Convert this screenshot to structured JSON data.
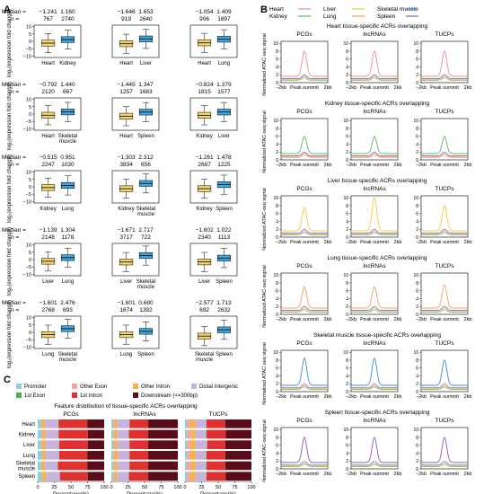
{
  "panel_labels": {
    "a": "A",
    "b": "B",
    "c": "C"
  },
  "panelA": {
    "median_label": "Median =",
    "n_label": "n =",
    "ylabel": "log₂(expression fold change)",
    "yticks": [
      "10",
      "5",
      "0",
      "−5",
      "−10"
    ],
    "colors": {
      "first": "#f6d66b",
      "second": "#3ea7e0"
    },
    "rows": [
      [
        {
          "cats": [
            "Heart",
            "Kidney"
          ],
          "medians": [
            "−1.241",
            "1.160"
          ],
          "n": [
            "767",
            "2740"
          ]
        },
        {
          "cats": [
            "Heart",
            "Liver"
          ],
          "medians": [
            "−1.646",
            "1.653"
          ],
          "n": [
            "919",
            "2640"
          ]
        },
        {
          "cats": [
            "Heart",
            "Lung"
          ],
          "medians": [
            "−1.054",
            "1.409"
          ],
          "n": [
            "906",
            "1697"
          ]
        }
      ],
      [
        {
          "cats": [
            "Heart",
            "Skeletal muscle"
          ],
          "medians": [
            "−0.792",
            "1.440"
          ],
          "n": [
            "2120",
            "667"
          ]
        },
        {
          "cats": [
            "Heart",
            "Spleen"
          ],
          "medians": [
            "−1.445",
            "1.347"
          ],
          "n": [
            "1257",
            "1683"
          ]
        },
        {
          "cats": [
            "Kidney",
            "Liver"
          ],
          "medians": [
            "−0.824",
            "1.379"
          ],
          "n": [
            "1815",
            "1577"
          ]
        }
      ],
      [
        {
          "cats": [
            "Kidney",
            "Lung"
          ],
          "medians": [
            "−0.515",
            "0.951"
          ],
          "n": [
            "2247",
            "1030"
          ]
        },
        {
          "cats": [
            "Kidney",
            "Skeletal muscle"
          ],
          "medians": [
            "−1.303",
            "2.312"
          ],
          "n": [
            "3834",
            "656"
          ]
        },
        {
          "cats": [
            "Kidney",
            "Spleen"
          ],
          "medians": [
            "−1.261",
            "1.478"
          ],
          "n": [
            "2687",
            "1225"
          ]
        }
      ],
      [
        {
          "cats": [
            "Liver",
            "Lung"
          ],
          "medians": [
            "−1.139",
            "1.304"
          ],
          "n": [
            "2148",
            "1178"
          ]
        },
        {
          "cats": [
            "Liver",
            "Skeletal muscle"
          ],
          "medians": [
            "−1.671",
            "2.717"
          ],
          "n": [
            "3717",
            "722"
          ]
        },
        {
          "cats": [
            "Liver",
            "Spleen"
          ],
          "medians": [
            "−1.602",
            "1.022"
          ],
          "n": [
            "2340",
            "1113"
          ]
        }
      ],
      [
        {
          "cats": [
            "Lung",
            "Skeletal muscle"
          ],
          "medians": [
            "−1.601",
            "2.476"
          ],
          "n": [
            "2768",
            "693"
          ]
        },
        {
          "cats": [
            "Lung",
            "Spleen"
          ],
          "medians": [
            "−1.601",
            "0.680"
          ],
          "n": [
            "1674",
            "1392"
          ]
        },
        {
          "cats": [
            "Skeletal muscle",
            "Spleen"
          ],
          "medians": [
            "−2.577",
            "1.713"
          ],
          "n": [
            "692",
            "2632"
          ]
        }
      ]
    ]
  },
  "panelB": {
    "legend": [
      {
        "name": "Heart",
        "color": "#f08c8c"
      },
      {
        "name": "Liver",
        "color": "#f2cc3a"
      },
      {
        "name": "Skeletal muscle",
        "color": "#3a8fd6"
      },
      {
        "name": "Kidney",
        "color": "#5cb85c"
      },
      {
        "name": "Lung",
        "color": "#f0a060"
      },
      {
        "name": "Spleen",
        "color": "#8e56c2"
      }
    ],
    "ylabel": "Normalized ATAC-seq signal",
    "xticks": [
      "−2kb",
      "Peak summit",
      "2kb"
    ],
    "yticks": [
      "0",
      "2",
      "4",
      "6",
      "8",
      "10"
    ],
    "cols": [
      "PCGs",
      "lncRNAs",
      "TUCPs"
    ],
    "groups": [
      {
        "title": "Heart tissue-specific ACRs overlapping",
        "highlight": 0,
        "peaks": [
          8,
          8,
          8
        ]
      },
      {
        "title": "Kidney tissue-specific ACRs overlapping",
        "highlight": 3,
        "peaks": [
          6,
          6,
          6
        ]
      },
      {
        "title": "Liver tissue-specific ACRs overlapping",
        "highlight": 1,
        "peaks": [
          7.5,
          10,
          8
        ]
      },
      {
        "title": "Lung tissue-specific ACRs overlapping",
        "highlight": 4,
        "peaks": [
          7,
          7,
          7.5
        ]
      },
      {
        "title": "Skeletal muscle tissue-specific ACRs overlapping",
        "highlight": 2,
        "peaks": [
          8.5,
          8.5,
          8
        ]
      },
      {
        "title": "Spleen tissue-specific ACRs overlapping",
        "highlight": 5,
        "peaks": [
          8,
          8,
          8
        ]
      }
    ]
  },
  "panelC": {
    "legend": [
      {
        "name": "Promoter",
        "color": "#8ecfd8"
      },
      {
        "name": "Other Exon",
        "color": "#f5a3a3"
      },
      {
        "name": "Other Intron",
        "color": "#f7b04a"
      },
      {
        "name": "Distal Intergenic",
        "color": "#c7b3de"
      },
      {
        "name": "1st Exon",
        "color": "#52b04c"
      },
      {
        "name": "1st Intron",
        "color": "#e03030"
      },
      {
        "name": "Downstream (<=300bp)",
        "color": "#5a0d18"
      }
    ],
    "title": "Feature distribution of tissue-specific ACRs overlapping",
    "xlabel": "Percentage(%)",
    "xticks": [
      "0",
      "25",
      "50",
      "75",
      "100"
    ],
    "cats": [
      "Heart",
      "Kidney",
      "Liver",
      "Lung",
      "Skeletal muscle",
      "Spleen"
    ],
    "subpanels": [
      {
        "name": "PCGs",
        "rows": [
          [
            5,
            1,
            5,
            20,
            0.5,
            43,
            25.5
          ],
          [
            6,
            1,
            5,
            19,
            0.5,
            44,
            24.5
          ],
          [
            5,
            1,
            6,
            20,
            0.5,
            43,
            24.5
          ],
          [
            6,
            1,
            5,
            20,
            0.5,
            42,
            25.5
          ],
          [
            5,
            1,
            5,
            19,
            0.5,
            44,
            25.5
          ],
          [
            6,
            1,
            6,
            20,
            0.5,
            42,
            24.5
          ]
        ]
      },
      {
        "name": "lncRNAs",
        "rows": [
          [
            3,
            1,
            5,
            18,
            0.5,
            28,
            44.5
          ],
          [
            3,
            1,
            5,
            17,
            0.5,
            29,
            44.5
          ],
          [
            3,
            1,
            5,
            18,
            0.5,
            28,
            44.5
          ],
          [
            3,
            1,
            6,
            17,
            0.5,
            28,
            44.5
          ],
          [
            3,
            1,
            5,
            18,
            0.5,
            28,
            44.5
          ],
          [
            3,
            1,
            5,
            17,
            0.5,
            29,
            44.5
          ]
        ]
      },
      {
        "name": "TUCPs",
        "rows": [
          [
            3,
            5,
            8,
            16,
            0.5,
            28,
            39.5
          ],
          [
            3,
            6,
            7,
            16,
            0.5,
            29,
            38.5
          ],
          [
            3,
            5,
            8,
            17,
            0.5,
            27,
            39.5
          ],
          [
            3,
            5,
            8,
            16,
            0.5,
            28,
            39.5
          ],
          [
            3,
            6,
            7,
            16,
            0.5,
            28,
            39.5
          ],
          [
            3,
            5,
            8,
            16,
            0.5,
            29,
            38.5
          ]
        ]
      }
    ]
  }
}
